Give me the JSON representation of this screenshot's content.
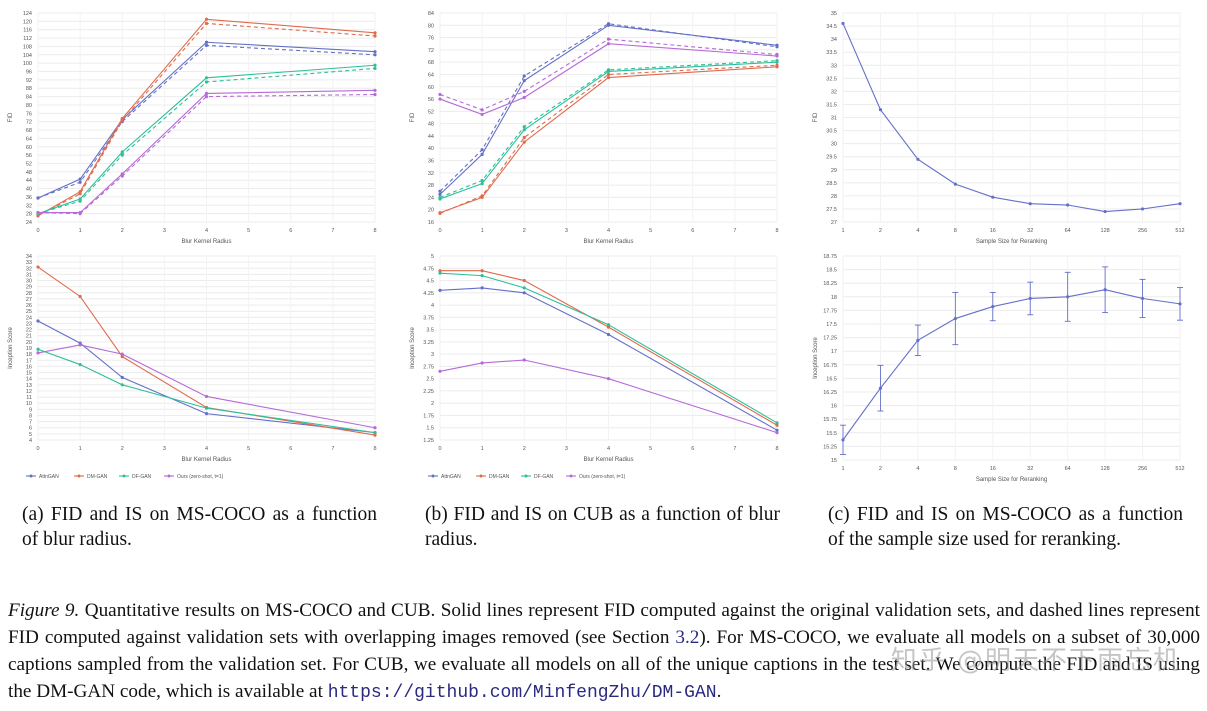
{
  "chart_data": [
    {
      "id": "a_fid",
      "type": "line",
      "title": "",
      "xlabel": "Blur Kernel Radius",
      "ylabel": "FID",
      "x": [
        0,
        1,
        2,
        4,
        8
      ],
      "xticks": [
        "0",
        "1",
        "2",
        "3",
        "4",
        "5",
        "6",
        "7",
        "8"
      ],
      "xtick_positions": [
        0,
        1,
        2,
        3,
        4,
        5,
        6,
        7,
        8
      ],
      "ylim": [
        24,
        124
      ],
      "yticks": [
        "24",
        "28",
        "32",
        "36",
        "40",
        "44",
        "48",
        "52",
        "56",
        "60",
        "64",
        "68",
        "72",
        "76",
        "80",
        "84",
        "88",
        "92",
        "96",
        "100",
        "104",
        "108",
        "112",
        "116",
        "120",
        "124"
      ],
      "ytick_values": [
        24,
        28,
        32,
        36,
        40,
        44,
        48,
        52,
        56,
        60,
        64,
        68,
        72,
        76,
        80,
        84,
        88,
        92,
        96,
        100,
        104,
        108,
        112,
        116,
        120,
        124
      ],
      "series": [
        {
          "name": "AttnGAN",
          "color": "#6470c8",
          "dash": false,
          "values": [
            35.5,
            44.5,
            73,
            110,
            105.5
          ]
        },
        {
          "name": "AttnGAN",
          "color": "#6470c8",
          "dash": true,
          "values": [
            35.5,
            43,
            72,
            108.5,
            104
          ]
        },
        {
          "name": "DM-GAN",
          "color": "#e06a4c",
          "dash": false,
          "values": [
            27,
            38.5,
            73.5,
            121,
            114.5
          ]
        },
        {
          "name": "DM-GAN",
          "color": "#e06a4c",
          "dash": true,
          "values": [
            27,
            37.5,
            72.5,
            119,
            113
          ]
        },
        {
          "name": "DF-GAN",
          "color": "#2dbf9a",
          "dash": false,
          "values": [
            28,
            35,
            57.5,
            93,
            99
          ]
        },
        {
          "name": "DF-GAN",
          "color": "#2dbf9a",
          "dash": true,
          "values": [
            28,
            34,
            56,
            91,
            97.5
          ]
        },
        {
          "name": "Ours (zero-shot, t=1)",
          "color": "#b56ad8",
          "dash": false,
          "values": [
            28.5,
            28.5,
            47,
            85.5,
            87
          ]
        },
        {
          "name": "Ours (zero-shot, t=1)",
          "color": "#b56ad8",
          "dash": true,
          "values": [
            28.5,
            28,
            46,
            84,
            85
          ]
        }
      ]
    },
    {
      "id": "a_is",
      "type": "line",
      "title": "",
      "xlabel": "Blur Kernel Radius",
      "ylabel": "Inception Score",
      "x": [
        0,
        1,
        2,
        4,
        8
      ],
      "xticks": [
        "0",
        "1",
        "2",
        "3",
        "4",
        "5",
        "6",
        "7",
        "8"
      ],
      "xtick_positions": [
        0,
        1,
        2,
        3,
        4,
        5,
        6,
        7,
        8
      ],
      "ylim": [
        4,
        34
      ],
      "yticks": [
        "4",
        "5",
        "6",
        "7",
        "8",
        "9",
        "10",
        "11",
        "12",
        "13",
        "14",
        "15",
        "16",
        "17",
        "18",
        "19",
        "20",
        "21",
        "22",
        "23",
        "24",
        "25",
        "26",
        "27",
        "28",
        "29",
        "30",
        "31",
        "32",
        "33",
        "34"
      ],
      "ytick_values": [
        4,
        5,
        6,
        7,
        8,
        9,
        10,
        11,
        12,
        13,
        14,
        15,
        16,
        17,
        18,
        19,
        20,
        21,
        22,
        23,
        24,
        25,
        26,
        27,
        28,
        29,
        30,
        31,
        32,
        33,
        34
      ],
      "series": [
        {
          "name": "AttnGAN",
          "color": "#6470c8",
          "dash": false,
          "values": [
            23.4,
            19.8,
            14.2,
            8.3,
            5.2
          ]
        },
        {
          "name": "DM-GAN",
          "color": "#e06a4c",
          "dash": false,
          "values": [
            32.2,
            27.4,
            17.6,
            9.3,
            4.8
          ]
        },
        {
          "name": "DF-GAN",
          "color": "#2dbf9a",
          "dash": false,
          "values": [
            18.8,
            16.3,
            13.0,
            9.2,
            5.2
          ]
        },
        {
          "name": "Ours (zero-shot, t=1)",
          "color": "#b56ad8",
          "dash": false,
          "values": [
            18.2,
            19.5,
            18.0,
            11.1,
            6.0
          ]
        }
      ],
      "legend": [
        "AttnGAN",
        "DM-GAN",
        "DF-GAN",
        "Ours (zero-shot, t=1)"
      ]
    },
    {
      "id": "b_fid",
      "type": "line",
      "title": "",
      "xlabel": "Blur Kernel Radius",
      "ylabel": "FID",
      "x": [
        0,
        1,
        2,
        4,
        8
      ],
      "xticks": [
        "0",
        "1",
        "2",
        "3",
        "4",
        "5",
        "6",
        "7",
        "8"
      ],
      "xtick_positions": [
        0,
        1,
        2,
        3,
        4,
        5,
        6,
        7,
        8
      ],
      "ylim": [
        16,
        84
      ],
      "yticks": [
        "16",
        "20",
        "24",
        "28",
        "32",
        "36",
        "40",
        "44",
        "48",
        "52",
        "56",
        "60",
        "64",
        "68",
        "72",
        "76",
        "80",
        "84"
      ],
      "ytick_values": [
        16,
        20,
        24,
        28,
        32,
        36,
        40,
        44,
        48,
        52,
        56,
        60,
        64,
        68,
        72,
        76,
        80,
        84
      ],
      "series": [
        {
          "name": "AttnGAN",
          "color": "#6470c8",
          "dash": false,
          "values": [
            25,
            38,
            62,
            80,
            73.5
          ]
        },
        {
          "name": "AttnGAN",
          "color": "#6470c8",
          "dash": true,
          "values": [
            26,
            39.5,
            63.5,
            80.5,
            73
          ]
        },
        {
          "name": "DM-GAN",
          "color": "#e06a4c",
          "dash": false,
          "values": [
            19,
            24,
            42,
            63,
            66.5
          ]
        },
        {
          "name": "DM-GAN",
          "color": "#e06a4c",
          "dash": true,
          "values": [
            18.8,
            24.5,
            43.5,
            64,
            67
          ]
        },
        {
          "name": "DF-GAN",
          "color": "#2dbf9a",
          "dash": false,
          "values": [
            23.5,
            28.5,
            46,
            65,
            68
          ]
        },
        {
          "name": "DF-GAN",
          "color": "#2dbf9a",
          "dash": true,
          "values": [
            24,
            29.5,
            47,
            65.5,
            68.5
          ]
        },
        {
          "name": "Ours (zero-shot, t=1)",
          "color": "#b56ad8",
          "dash": false,
          "values": [
            56,
            51,
            56.5,
            74,
            70
          ]
        },
        {
          "name": "Ours (zero-shot, t=1)",
          "color": "#b56ad8",
          "dash": true,
          "values": [
            57.5,
            52.5,
            58.5,
            75.5,
            70.5
          ]
        }
      ]
    },
    {
      "id": "b_is",
      "type": "line",
      "title": "",
      "xlabel": "Blur Kernel Radius",
      "ylabel": "Inception Score",
      "x": [
        0,
        1,
        2,
        4,
        8
      ],
      "xticks": [
        "0",
        "1",
        "2",
        "3",
        "4",
        "5",
        "6",
        "7",
        "8"
      ],
      "xtick_positions": [
        0,
        1,
        2,
        3,
        4,
        5,
        6,
        7,
        8
      ],
      "ylim": [
        1.25,
        5
      ],
      "yticks": [
        "1.25",
        "1.5",
        "1.75",
        "2",
        "2.25",
        "2.5",
        "2.75",
        "3",
        "3.25",
        "3.5",
        "3.75",
        "4",
        "4.25",
        "4.5",
        "4.75",
        "5"
      ],
      "ytick_values": [
        1.25,
        1.5,
        1.75,
        2,
        2.25,
        2.5,
        2.75,
        3,
        3.25,
        3.5,
        3.75,
        4,
        4.25,
        4.5,
        4.75,
        5
      ],
      "series": [
        {
          "name": "AttnGAN",
          "color": "#6470c8",
          "dash": false,
          "values": [
            4.3,
            4.35,
            4.25,
            3.4,
            1.45
          ]
        },
        {
          "name": "DM-GAN",
          "color": "#e06a4c",
          "dash": false,
          "values": [
            4.7,
            4.7,
            4.5,
            3.55,
            1.55
          ]
        },
        {
          "name": "DF-GAN",
          "color": "#2dbf9a",
          "dash": false,
          "values": [
            4.65,
            4.6,
            4.35,
            3.6,
            1.6
          ]
        },
        {
          "name": "Ours (zero-shot, t=1)",
          "color": "#b56ad8",
          "dash": false,
          "values": [
            2.65,
            2.82,
            2.88,
            2.5,
            1.4
          ]
        }
      ],
      "legend": [
        "AttnGAN",
        "DM-GAN",
        "DF-GAN",
        "Ours (zero-shot, t=1)"
      ]
    },
    {
      "id": "c_fid",
      "type": "line",
      "title": "",
      "xlabel": "Sample Size for Reranking",
      "ylabel": "FID",
      "x": [
        0,
        1,
        2,
        3,
        4,
        5,
        6,
        7,
        8,
        9
      ],
      "xticks": [
        "1",
        "2",
        "4",
        "8",
        "16",
        "32",
        "64",
        "128",
        "256",
        "512"
      ],
      "xtick_positions": [
        0,
        1,
        2,
        3,
        4,
        5,
        6,
        7,
        8,
        9
      ],
      "ylim": [
        27,
        35
      ],
      "yticks": [
        "27",
        "27.5",
        "28",
        "28.5",
        "29",
        "29.5",
        "30",
        "30.5",
        "31",
        "31.5",
        "32",
        "32.5",
        "33",
        "33.5",
        "34",
        "34.5",
        "35"
      ],
      "ytick_values": [
        27,
        27.5,
        28,
        28.5,
        29,
        29.5,
        30,
        30.5,
        31,
        31.5,
        32,
        32.5,
        33,
        33.5,
        34,
        34.5,
        35
      ],
      "series": [
        {
          "name": "FID",
          "color": "#6470c8",
          "dash": false,
          "values": [
            34.6,
            31.3,
            29.4,
            28.45,
            27.95,
            27.7,
            27.65,
            27.4,
            27.5,
            27.7
          ]
        }
      ]
    },
    {
      "id": "c_is",
      "type": "line",
      "title": "",
      "xlabel": "Sample Size for Reranking",
      "ylabel": "Inception Score",
      "x": [
        0,
        1,
        2,
        3,
        4,
        5,
        6,
        7,
        8,
        9
      ],
      "xticks": [
        "1",
        "2",
        "4",
        "8",
        "16",
        "32",
        "64",
        "128",
        "256",
        "512"
      ],
      "xtick_positions": [
        0,
        1,
        2,
        3,
        4,
        5,
        6,
        7,
        8,
        9
      ],
      "ylim": [
        15,
        18.75
      ],
      "yticks": [
        "15",
        "15.25",
        "15.5",
        "15.75",
        "16",
        "16.25",
        "16.5",
        "16.75",
        "17",
        "17.25",
        "17.5",
        "17.75",
        "18",
        "18.25",
        "18.5",
        "18.75"
      ],
      "ytick_values": [
        15,
        15.25,
        15.5,
        15.75,
        16,
        16.25,
        16.5,
        16.75,
        17,
        17.25,
        17.5,
        17.75,
        18,
        18.25,
        18.5,
        18.75
      ],
      "series": [
        {
          "name": "IS",
          "color": "#6470c8",
          "dash": false,
          "values": [
            15.37,
            16.32,
            17.2,
            17.6,
            17.82,
            17.97,
            18.0,
            18.13,
            17.97,
            17.87
          ],
          "err": [
            0.27,
            0.42,
            0.28,
            0.48,
            0.26,
            0.3,
            0.45,
            0.42,
            0.35,
            0.3
          ]
        }
      ]
    }
  ],
  "captions": {
    "a": "(a) FID and IS on MS-COCO as a function of blur radius.",
    "b": "(b) FID and IS on CUB as a function of blur radius.",
    "c": "(c) FID and IS on MS-COCO as a function of the sample size used for reranking."
  },
  "figure_caption": {
    "label": "Figure 9.",
    "text_before_ref": "Quantitative results on MS-COCO and CUB. Solid lines represent FID computed against the original validation sets, and dashed lines represent FID computed against validation sets with overlapping images removed (see Section",
    "ref": "3.2",
    "text_after_ref": "). For MS-COCO, we evaluate all models on a subset of 30,000 captions sampled from the validation set. For CUB, we evaluate all models on all of the unique captions in the test set. We compute the FID and IS using the DM-GAN code, which is available at",
    "url": "https://github.com/MinfengZhu/DM-GAN",
    "end": "."
  },
  "watermark": "知乎 @明天不下雨忘机"
}
